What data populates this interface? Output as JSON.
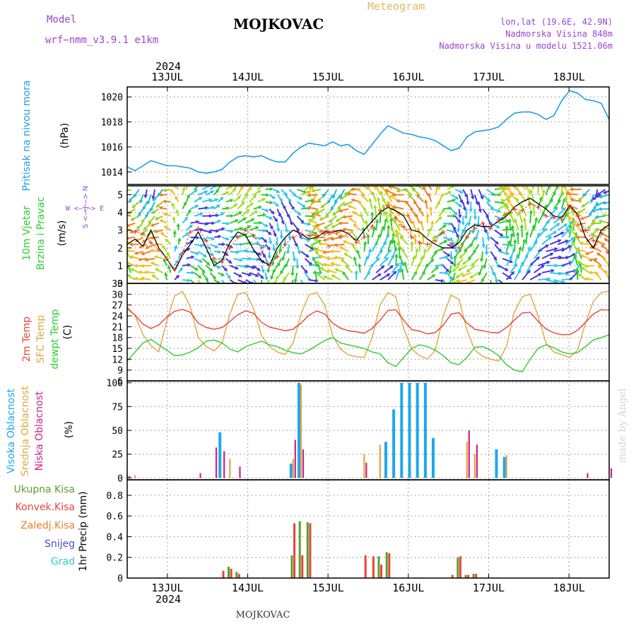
{
  "header": {
    "model_label": "Model",
    "model_name": "wrf−nmm_v3.9.1  e1km",
    "station": "MOJKOVAC",
    "product": "Meteogram",
    "coords": "lon,lat (19.6E, 42.9N)",
    "elevation": "Nadmorska Visina 848m",
    "model_elevation": "Nadmorska Visina u modelu 1521.06m",
    "year_top": "2024",
    "year_bottom": "2024",
    "footer_station": "MOJKOVAC",
    "credit": "made by Angel"
  },
  "colors": {
    "pressure": "#1e9ee6",
    "t2m": "#e8433a",
    "sfc": "#e0a642",
    "dewpt": "#2ecc2e",
    "cloud_high": "#1ea7f0",
    "cloud_mid": "#e0a642",
    "cloud_low": "#d0208c",
    "precip_total": "#5aa02c",
    "precip_conv": "#e8433a",
    "precip_frozen": "#f07c28",
    "snow": "#4a4ad8",
    "hail": "#2ec8c8",
    "wind_label": "#9a44d0",
    "grid": "#999999"
  },
  "chart_data": {
    "type": "line",
    "x_axis": {
      "start": "2024-07-12T12:00",
      "end": "2024-07-18T12:00",
      "tick_labels": [
        "13JUL",
        "14JUL",
        "15JUL",
        "16JUL",
        "17JUL",
        "18JUL"
      ]
    },
    "panels": {
      "pressure": {
        "ylabel_1": "Pritisak na nivou mora",
        "ylabel_2": "(hPa)",
        "ylim": [
          1013.0,
          1020.8
        ],
        "ticks": [
          1014,
          1016,
          1018,
          1020
        ],
        "series": [
          {
            "name": "Pritisak na nivou mora",
            "values": [
              1014.4,
              1014.1,
              1014.5,
              1014.9,
              1014.7,
              1014.5,
              1014.5,
              1014.4,
              1014.3,
              1014.0,
              1013.9,
              1014.0,
              1014.2,
              1014.8,
              1015.2,
              1015.3,
              1015.2,
              1015.3,
              1015.0,
              1014.8,
              1014.8,
              1015.5,
              1016.0,
              1016.3,
              1016.2,
              1016.1,
              1016.4,
              1016.1,
              1016.2,
              1015.7,
              1015.4,
              1016.2,
              1017.0,
              1017.7,
              1017.4,
              1017.1,
              1017.0,
              1016.8,
              1016.7,
              1016.5,
              1016.1,
              1015.7,
              1015.9,
              1016.8,
              1017.2,
              1017.3,
              1017.4,
              1017.6,
              1018.2,
              1018.7,
              1018.8,
              1018.8,
              1018.6,
              1018.2,
              1018.5,
              1019.7,
              1020.5,
              1020.3,
              1019.8,
              1019.7,
              1019.5,
              1018.2
            ]
          }
        ]
      },
      "wind": {
        "ylabel_1": "10m Vjetar",
        "ylabel_2": "Brzina i Pravac",
        "ylabel_3": "(m/s)",
        "compass": "W <—|—> E",
        "compass_v": "S <—|—> N",
        "ylim": [
          0,
          5.5
        ],
        "ticks": [
          0,
          1,
          2,
          3,
          4,
          5
        ],
        "series": [
          {
            "name": "Brzina",
            "values": [
              2.2,
              2.5,
              2.1,
              3.0,
              2.0,
              1.4,
              0.7,
              1.6,
              2.2,
              2.9,
              2.0,
              1.0,
              1.3,
              2.3,
              2.9,
              2.7,
              1.9,
              1.3,
              1.0,
              2.0,
              2.6,
              3.0,
              2.8,
              2.5,
              2.6,
              2.9,
              2.9,
              3.0,
              2.8,
              2.4,
              3.0,
              3.5,
              4.0,
              4.3,
              4.1,
              3.8,
              3.0,
              2.9,
              2.5,
              2.2,
              2.0,
              2.0,
              2.3,
              3.0,
              3.3,
              3.2,
              3.2,
              3.5,
              3.8,
              4.3,
              4.6,
              4.8,
              4.5,
              4.2,
              3.8,
              3.7,
              4.4,
              3.9,
              2.6,
              2.0,
              3.0,
              3.3
            ]
          },
          {
            "name": "Udari",
            "values": [
              3.0,
              2.9,
              2.8,
              2.3,
              1.9,
              1.4,
              0.8,
              1.7,
              2.9,
              3.1,
              2.4,
              1.4,
              1.2,
              2.0,
              2.6,
              3.0,
              2.7,
              2.0,
              1.0,
              1.5,
              2.2,
              2.6,
              2.8,
              2.7,
              2.7,
              2.8,
              2.9,
              2.6,
              2.8,
              2.3,
              2.6,
              3.2,
              4.1,
              4.4,
              3.7,
              3.2,
              2.6,
              2.3,
              2.2,
              2.4,
              2.9,
              2.2,
              2.0,
              2.6,
              3.1,
              3.4,
              3.1,
              3.6,
              3.9,
              4.2,
              4.1,
              4.5,
              4.3,
              3.8,
              3.7,
              3.6,
              4.3,
              3.8,
              3.0,
              2.4,
              2.8,
              3.4
            ]
          }
        ]
      },
      "temperature": {
        "ylabel_1": "2m Temp",
        "ylabel_2": "SFC Temp",
        "ylabel_3": "dewpt Temp",
        "ylabel_4": "(C)",
        "ylim": [
          6,
          33
        ],
        "ticks": [
          6,
          9,
          12,
          15,
          18,
          21,
          24,
          27,
          30,
          33
        ],
        "series": [
          {
            "name": "2m Temp",
            "values": [
              26.0,
              24.2,
              21.7,
              20.5,
              21.5,
              23.6,
              25.3,
              25.8,
              25.0,
              22.0,
              20.8,
              20.3,
              20.8,
              22.5,
              24.3,
              25.4,
              24.7,
              22.2,
              20.9,
              20.4,
              19.9,
              20.3,
              22.0,
              24.2,
              25.4,
              24.5,
              22.0,
              20.6,
              19.9,
              19.6,
              19.2,
              20.5,
              22.8,
              25.5,
              25.7,
              22.8,
              20.2,
              19.8,
              19.0,
              19.4,
              21.4,
              24.5,
              24.9,
              22.0,
              20.3,
              19.9,
              19.4,
              19.3,
              20.8,
              22.8,
              24.8,
              25.0,
              22.5,
              20.4,
              19.3,
              18.8,
              18.8,
              20.0,
              22.2,
              24.5,
              25.7,
              25.6
            ]
          },
          {
            "name": "SFC Temp",
            "values": [
              26.5,
              24.0,
              18.8,
              15.8,
              14.0,
              22.5,
              29.5,
              30.8,
              26.5,
              18.0,
              15.5,
              14.3,
              16.5,
              24.5,
              30.0,
              30.5,
              26.0,
              18.5,
              15.5,
              14.0,
              13.3,
              16.5,
              24.5,
              29.8,
              30.5,
              27.0,
              18.5,
              14.8,
              13.2,
              12.7,
              12.5,
              18.0,
              27.0,
              30.5,
              29.3,
              20.5,
              14.8,
              13.0,
              12.0,
              14.5,
              24.0,
              29.8,
              28.5,
              20.0,
              14.5,
              12.8,
              12.0,
              11.5,
              15.5,
              25.0,
              29.3,
              30.0,
              24.0,
              16.5,
              14.0,
              13.3,
              12.5,
              14.5,
              22.0,
              28.0,
              30.5,
              30.8
            ]
          },
          {
            "name": "dewpt Temp",
            "values": [
              11.5,
              14.0,
              16.5,
              17.5,
              16.0,
              14.5,
              13.0,
              13.2,
              14.0,
              15.2,
              17.0,
              17.3,
              16.5,
              14.8,
              14.0,
              15.5,
              16.3,
              17.0,
              16.0,
              15.5,
              14.5,
              13.8,
              13.5,
              14.5,
              15.8,
              17.2,
              18.0,
              16.5,
              16.0,
              15.5,
              15.0,
              14.0,
              13.5,
              11.0,
              10.0,
              12.5,
              15.0,
              16.0,
              15.5,
              14.5,
              13.0,
              11.0,
              10.5,
              12.5,
              15.3,
              15.5,
              14.5,
              13.0,
              10.5,
              9.0,
              8.5,
              12.0,
              15.0,
              16.0,
              15.2,
              14.0,
              13.5,
              13.8,
              15.5,
              17.3,
              18.0,
              18.8
            ]
          }
        ]
      },
      "clouds": {
        "ylabel_1": "Visoka Oblacnost",
        "ylabel_2": "Srednja Oblacnost",
        "ylabel_3": "Niska Oblacnost",
        "ylabel_4": "(%)",
        "ylim": [
          -2,
          102
        ],
        "ticks": [
          0,
          25,
          50,
          75,
          100
        ],
        "series": [
          {
            "name": "Visoka Oblacnost",
            "values": [
              0,
              0,
              0,
              0,
              0,
              0,
              0,
              0,
              0,
              0,
              0,
              0,
              48,
              0,
              0,
              0,
              0,
              0,
              0,
              0,
              0,
              15,
              100,
              0,
              0,
              0,
              0,
              0,
              0,
              0,
              0,
              0,
              0,
              38,
              72,
              100,
              100,
              100,
              100,
              42,
              0,
              0,
              0,
              0,
              0,
              0,
              0,
              30,
              22,
              0,
              0,
              0,
              0,
              0,
              0,
              0,
              0,
              0,
              0,
              0,
              0,
              0
            ]
          },
          {
            "name": "Srednja Oblacnost",
            "values": [
              4,
              3,
              0,
              0,
              0,
              0,
              0,
              0,
              0,
              0,
              0,
              0,
              0,
              20,
              0,
              0,
              0,
              0,
              0,
              0,
              0,
              20,
              98,
              0,
              0,
              0,
              0,
              0,
              0,
              0,
              25,
              0,
              35,
              0,
              0,
              0,
              0,
              0,
              0,
              0,
              0,
              0,
              0,
              38,
              25,
              0,
              0,
              0,
              24,
              0,
              0,
              0,
              0,
              0,
              0,
              0,
              0,
              0,
              0,
              0,
              0,
              0
            ]
          },
          {
            "name": "Niska Oblacnost",
            "values": [
              2,
              0,
              0,
              0,
              0,
              0,
              0,
              0,
              0,
              5,
              0,
              32,
              28,
              0,
              12,
              0,
              0,
              0,
              0,
              0,
              0,
              40,
              30,
              0,
              0,
              0,
              0,
              0,
              0,
              0,
              16,
              0,
              0,
              0,
              0,
              0,
              0,
              0,
              0,
              0,
              0,
              0,
              0,
              50,
              35,
              0,
              0,
              0,
              0,
              0,
              0,
              0,
              0,
              0,
              0,
              0,
              0,
              0,
              5,
              0,
              0,
              10
            ]
          }
        ]
      },
      "precip": {
        "legend": [
          "Ukupna Kisa",
          "Konvek.Kisa",
          "Zaledj.Kisa",
          "Snijeg",
          "Grad"
        ],
        "ylabel_1": "1hr Precip (mm)",
        "ylim": [
          0,
          0.95
        ],
        "ticks": [
          0,
          0.2,
          0.4,
          0.6,
          0.8
        ],
        "series": [
          {
            "name": "Ukupna Kisa",
            "values": [
              0,
              0,
              0,
              0,
              0,
              0,
              0,
              0,
              0,
              0,
              0,
              0,
              0,
              0.11,
              0.06,
              0,
              0,
              0,
              0,
              0,
              0,
              0.22,
              0.55,
              0.54,
              0,
              0,
              0,
              0,
              0,
              0,
              0,
              0,
              0.21,
              0.25,
              0,
              0,
              0,
              0,
              0,
              0,
              0,
              0,
              0.2,
              0.03,
              0.04,
              0,
              0,
              0,
              0,
              0,
              0,
              0,
              0,
              0,
              0,
              0,
              0,
              0,
              0,
              0,
              0,
              0
            ]
          },
          {
            "name": "Konvek.Kisa",
            "values": [
              0,
              0,
              0,
              0,
              0,
              0,
              0,
              0,
              0,
              0,
              0,
              0,
              0.07,
              0.09,
              0.04,
              0,
              0,
              0,
              0,
              0,
              0,
              0.53,
              0.22,
              0.53,
              0,
              0,
              0,
              0,
              0,
              0,
              0.22,
              0.21,
              0.13,
              0.24,
              0,
              0,
              0,
              0,
              0,
              0,
              0,
              0.03,
              0.21,
              0.03,
              0.04,
              0,
              0,
              0,
              0,
              0,
              0,
              0,
              0,
              0,
              0,
              0,
              0,
              0,
              0,
              0,
              0,
              0
            ]
          }
        ]
      }
    }
  }
}
